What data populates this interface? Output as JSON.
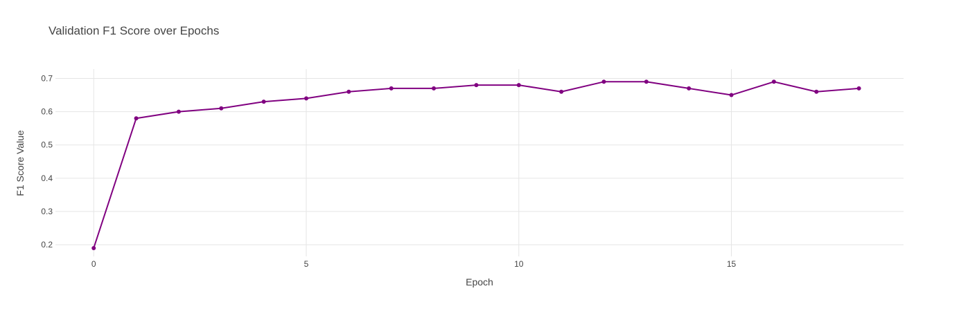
{
  "chart_data": {
    "type": "line",
    "title": "Validation F1 Score over Epochs",
    "xlabel": "Epoch",
    "ylabel": "F1 Score Value",
    "x": [
      0,
      1,
      2,
      3,
      4,
      5,
      6,
      7,
      8,
      9,
      10,
      11,
      12,
      13,
      14,
      15,
      16,
      17,
      18
    ],
    "series": [
      {
        "values": [
          0.19,
          0.58,
          0.6,
          0.61,
          0.63,
          0.64,
          0.66,
          0.67,
          0.67,
          0.68,
          0.68,
          0.66,
          0.69,
          0.69,
          0.67,
          0.65,
          0.69,
          0.66,
          0.67
        ]
      }
    ],
    "xlim": [
      -0.9,
      19.05
    ],
    "ylim": [
      0.165,
      0.728
    ],
    "x_ticks": [
      0,
      5,
      10,
      15
    ],
    "y_ticks": [
      0.2,
      0.3,
      0.4,
      0.5,
      0.6,
      0.7
    ],
    "x_tick_labels": [
      "0",
      "5",
      "10",
      "15"
    ],
    "y_tick_labels": [
      "0.2",
      "0.3",
      "0.4",
      "0.5",
      "0.6",
      "0.7"
    ],
    "grid": true,
    "legend": false,
    "colors": {
      "line": "#800080",
      "grid": "#e5e5e5",
      "text": "#444444",
      "background": "#ffffff"
    }
  }
}
